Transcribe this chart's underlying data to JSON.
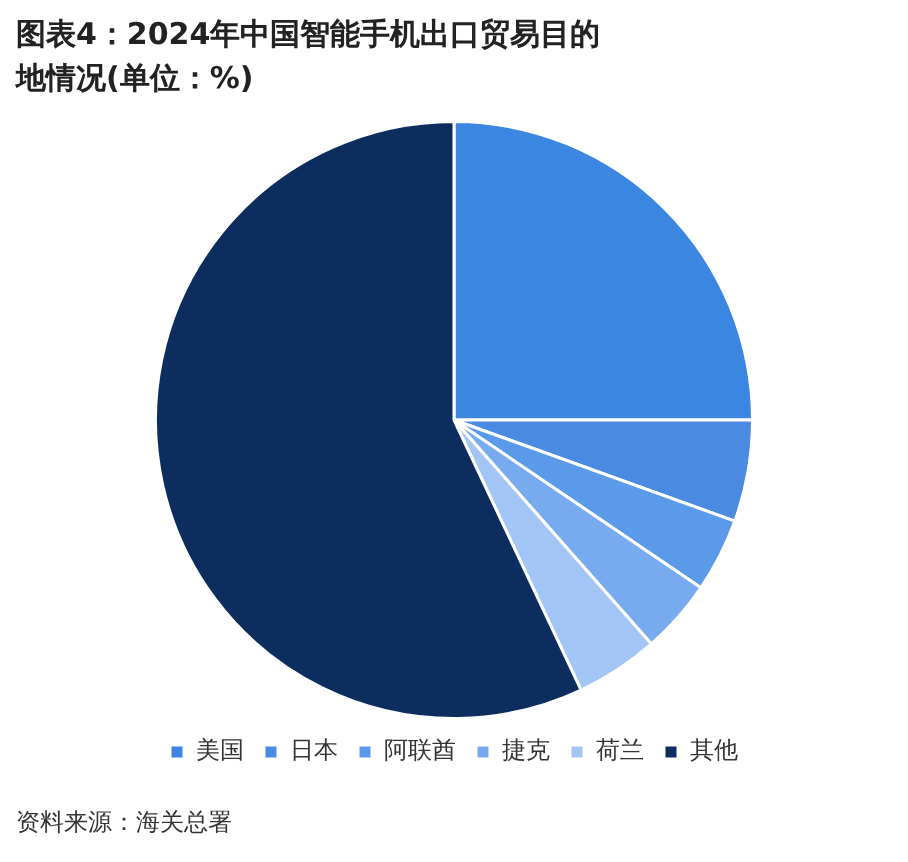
{
  "chart_data": {
    "type": "pie",
    "title": "图表4：2024年中国智能手机出口贸易目的地情况(单位：%)",
    "categories": [
      "美国",
      "日本",
      "阿联酋",
      "捷克",
      "荷兰",
      "其他"
    ],
    "values": [
      25,
      5.5,
      4,
      4,
      4.5,
      57
    ],
    "colors": [
      "#3a86e0",
      "#4a8ae0",
      "#5b9ae8",
      "#78aaef",
      "#a3c5f5",
      "#0d2d5e"
    ],
    "legend": "bottom",
    "annotations": [
      "资料来源：海关总署"
    ]
  }
}
